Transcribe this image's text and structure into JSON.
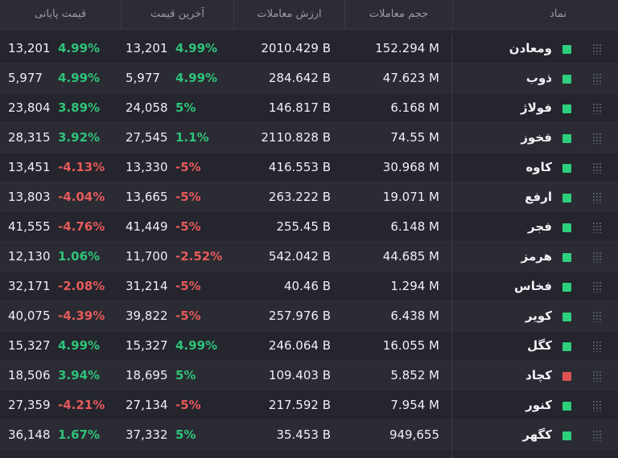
{
  "header": {
    "symbol": "نماد",
    "volume": "حجم معاملات",
    "value": "ارزش معاملات",
    "last_price": "آخرین قیمت",
    "close_price": "قیمت پایانی"
  },
  "colors": {
    "positive": "#2fc37a",
    "negative": "#e65a5a",
    "marker_green": "#2ecf7c",
    "marker_red": "#e05353"
  },
  "rows": [
    {
      "symbol": "ومعادن",
      "marker": "green",
      "volume": "152.294 M",
      "value": "2010.429 B",
      "last": "13,201",
      "last_pct": "4.99%",
      "last_dir": "pos",
      "close": "13,201",
      "close_pct": "4.99%",
      "close_dir": "pos"
    },
    {
      "symbol": "ذوب",
      "marker": "green",
      "volume": "47.623 M",
      "value": "284.642 B",
      "last": "5,977",
      "last_pct": "4.99%",
      "last_dir": "pos",
      "close": "5,977",
      "close_pct": "4.99%",
      "close_dir": "pos"
    },
    {
      "symbol": "فولاژ",
      "marker": "green",
      "volume": "6.168 M",
      "value": "146.817 B",
      "last": "24,058",
      "last_pct": "5%",
      "last_dir": "pos",
      "close": "23,804",
      "close_pct": "3.89%",
      "close_dir": "pos"
    },
    {
      "symbol": "فخوز",
      "marker": "green",
      "volume": "74.55 M",
      "value": "2110.828 B",
      "last": "27,545",
      "last_pct": "1.1%",
      "last_dir": "pos",
      "close": "28,315",
      "close_pct": "3.92%",
      "close_dir": "pos"
    },
    {
      "symbol": "کاوه",
      "marker": "green",
      "volume": "30.968 M",
      "value": "416.553 B",
      "last": "13,330",
      "last_pct": "-5%",
      "last_dir": "neg",
      "close": "13,451",
      "close_pct": "-4.13%",
      "close_dir": "neg"
    },
    {
      "symbol": "ارفع",
      "marker": "green",
      "volume": "19.071 M",
      "value": "263.222 B",
      "last": "13,665",
      "last_pct": "-5%",
      "last_dir": "neg",
      "close": "13,803",
      "close_pct": "-4.04%",
      "close_dir": "neg"
    },
    {
      "symbol": "فجر",
      "marker": "green",
      "volume": "6.148 M",
      "value": "255.45 B",
      "last": "41,449",
      "last_pct": "-5%",
      "last_dir": "neg",
      "close": "41,555",
      "close_pct": "-4.76%",
      "close_dir": "neg"
    },
    {
      "symbol": "هرمز",
      "marker": "green",
      "volume": "44.685 M",
      "value": "542.042 B",
      "last": "11,700",
      "last_pct": "-2.52%",
      "last_dir": "neg",
      "close": "12,130",
      "close_pct": "1.06%",
      "close_dir": "pos"
    },
    {
      "symbol": "فخاس",
      "marker": "green",
      "volume": "1.294 M",
      "value": "40.46 B",
      "last": "31,214",
      "last_pct": "-5%",
      "last_dir": "neg",
      "close": "32,171",
      "close_pct": "-2.08%",
      "close_dir": "neg"
    },
    {
      "symbol": "کویر",
      "marker": "green",
      "volume": "6.438 M",
      "value": "257.976 B",
      "last": "39,822",
      "last_pct": "-5%",
      "last_dir": "neg",
      "close": "40,075",
      "close_pct": "-4.39%",
      "close_dir": "neg"
    },
    {
      "symbol": "کگل",
      "marker": "green",
      "volume": "16.055 M",
      "value": "246.064 B",
      "last": "15,327",
      "last_pct": "4.99%",
      "last_dir": "pos",
      "close": "15,327",
      "close_pct": "4.99%",
      "close_dir": "pos"
    },
    {
      "symbol": "کچاد",
      "marker": "red",
      "volume": "5.852 M",
      "value": "109.403 B",
      "last": "18,695",
      "last_pct": "5%",
      "last_dir": "pos",
      "close": "18,506",
      "close_pct": "3.94%",
      "close_dir": "pos"
    },
    {
      "symbol": "کنور",
      "marker": "green",
      "volume": "7.954 M",
      "value": "217.592 B",
      "last": "27,134",
      "last_pct": "-5%",
      "last_dir": "neg",
      "close": "27,359",
      "close_pct": "-4.21%",
      "close_dir": "neg"
    },
    {
      "symbol": "کگهر",
      "marker": "green",
      "volume": "949,655",
      "value": "35.453 B",
      "last": "37,332",
      "last_pct": "5%",
      "last_dir": "pos",
      "close": "36,148",
      "close_pct": "1.67%",
      "close_dir": "pos"
    }
  ]
}
